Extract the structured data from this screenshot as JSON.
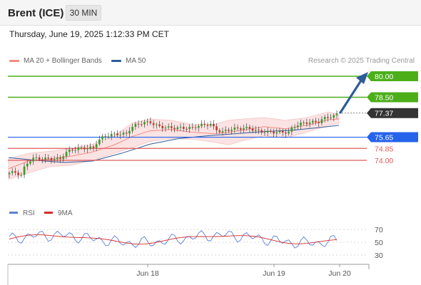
{
  "header": {
    "instrument": "Brent (ICE)",
    "timeframe": "30 MIN"
  },
  "datetime": "Thursday, June 19, 2025 1:12:33 PM CET",
  "legend": {
    "bollinger": {
      "label": "MA 20 + Bollinger Bands",
      "color": "#f28b82"
    },
    "ma50": {
      "label": "MA 50",
      "color": "#2e5c9a"
    }
  },
  "credit": "Research © 2025 Trading Central",
  "levels": [
    {
      "label": "80.00",
      "value": 80.0,
      "type": "target"
    },
    {
      "label": "78.50",
      "value": 78.5,
      "type": "target"
    },
    {
      "label": "77.37",
      "value": 77.37,
      "type": "last"
    },
    {
      "label": "75.65",
      "value": 75.65,
      "type": "pivot"
    },
    {
      "label": "74.85",
      "value": 74.85,
      "type": "support"
    },
    {
      "label": "74.00",
      "value": 74.0,
      "type": "support"
    }
  ],
  "rsi_legend": {
    "rsi": {
      "label": "RSI",
      "color": "#5b7fd6"
    },
    "ma": {
      "label": "9MA",
      "color": "#d62b2b"
    }
  },
  "rsi_ticks": [
    "70",
    "50",
    "30"
  ],
  "x_ticks": [
    "Jun 18",
    "Jun 19",
    "Jun 20"
  ],
  "colors": {
    "up": "#3a9a2a",
    "down": "#c0392b",
    "target": "#4caf1a",
    "pivot": "#2563eb",
    "support": "#e05a5a",
    "last": "#333333"
  },
  "chart_data": {
    "type": "candlestick",
    "current_price": 77.37,
    "series": [
      {
        "name": "MA 20 + Bollinger Bands"
      },
      {
        "name": "MA 50"
      }
    ],
    "rsi": {
      "levels": [
        70,
        50,
        30
      ],
      "series": [
        {
          "name": "RSI"
        },
        {
          "name": "9MA"
        }
      ]
    },
    "x_ticks": [
      "Jun 18",
      "Jun 19",
      "Jun 20"
    ]
  }
}
